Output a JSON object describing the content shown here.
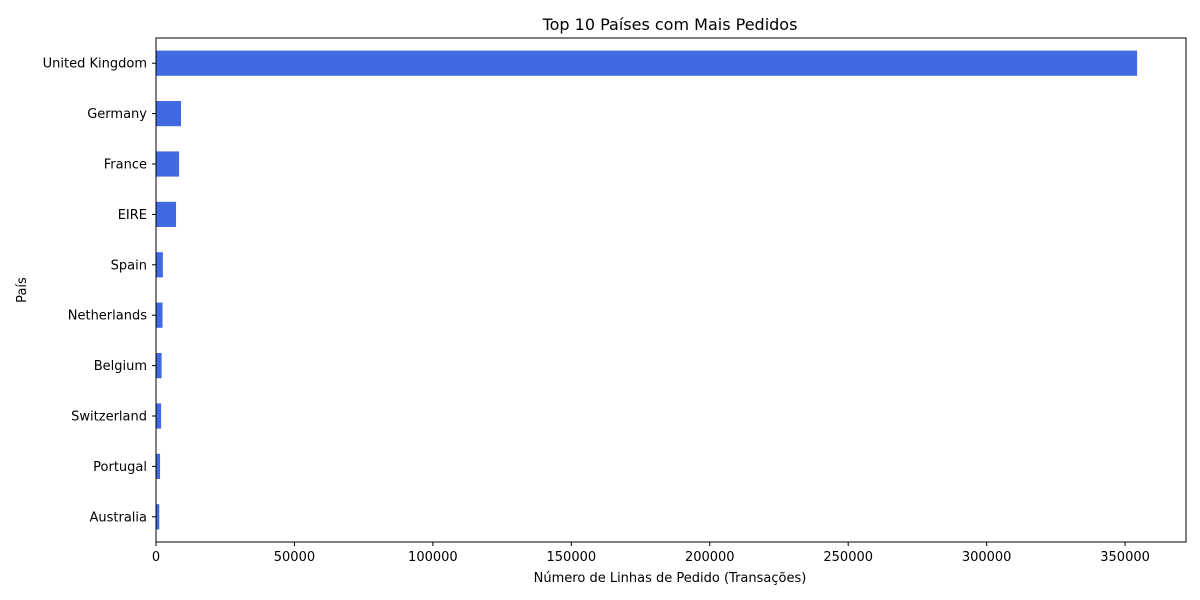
{
  "chart_data": {
    "type": "bar",
    "orientation": "horizontal",
    "title": "Top 10 Países com Mais Pedidos",
    "xlabel": "Número de Linhas de Pedido (Transações)",
    "ylabel": "País",
    "categories": [
      "United Kingdom",
      "Germany",
      "France",
      "EIRE",
      "Spain",
      "Netherlands",
      "Belgium",
      "Switzerland",
      "Portugal",
      "Australia"
    ],
    "values": [
      354345,
      9042,
      8342,
      7238,
      2485,
      2363,
      2031,
      1842,
      1462,
      1185
    ],
    "xlim": [
      0,
      372000
    ],
    "xticks": [
      0,
      50000,
      100000,
      150000,
      200000,
      250000,
      300000,
      350000
    ],
    "bar_color": "#4169e1",
    "grid": false
  }
}
